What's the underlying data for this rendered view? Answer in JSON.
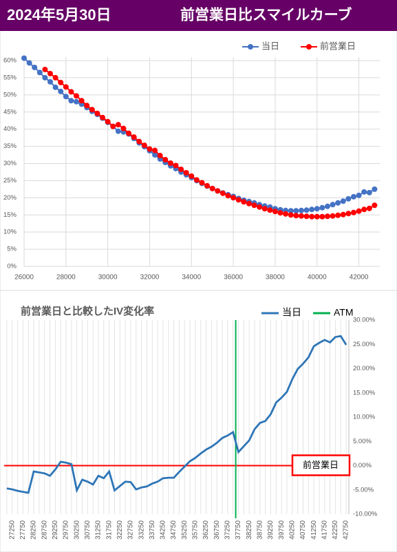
{
  "header": {
    "date": "2024年5月30日",
    "title": "前営業日比スマイルカーブ"
  },
  "chart_data": [
    {
      "type": "line",
      "markers": true,
      "grid": true,
      "legend": "top-right",
      "x": [
        26000,
        26250,
        26500,
        26750,
        27000,
        27250,
        27500,
        27750,
        28000,
        28250,
        28500,
        28750,
        29000,
        29250,
        29500,
        29750,
        30000,
        30250,
        30500,
        30750,
        31000,
        31250,
        31500,
        31750,
        32000,
        32250,
        32500,
        32750,
        33000,
        33250,
        33500,
        33750,
        34000,
        34250,
        34500,
        34750,
        35000,
        35250,
        35500,
        35750,
        36000,
        36250,
        36500,
        36750,
        37000,
        37250,
        37500,
        37750,
        38000,
        38250,
        38500,
        38750,
        39000,
        39250,
        39500,
        39750,
        40000,
        40250,
        40500,
        40750,
        41000,
        41250,
        41500,
        41750,
        42000,
        42250,
        42500,
        42750
      ],
      "series": [
        {
          "name": "当日",
          "color": "#4472c4",
          "values": [
            60.7,
            59.3,
            58.0,
            56.5,
            55.0,
            53.8,
            52.2,
            51.0,
            49.5,
            48.3,
            48.0,
            47.3,
            46.3,
            45.2,
            44.3,
            43.2,
            42.0,
            40.8,
            39.4,
            39.2,
            38.6,
            37.3,
            36.0,
            34.9,
            33.7,
            32.5,
            31.3,
            30.3,
            29.3,
            28.5,
            27.5,
            26.7,
            25.9,
            25.0,
            24.2,
            23.4,
            22.7,
            22.0,
            21.4,
            20.9,
            20.4,
            19.8,
            19.3,
            18.9,
            18.5,
            18.0,
            17.6,
            17.3,
            16.8,
            16.5,
            16.3,
            16.2,
            16.2,
            16.3,
            16.4,
            16.6,
            16.8,
            17.1,
            17.5,
            18.0,
            18.5,
            19.0,
            19.7,
            20.3,
            20.7,
            21.7,
            21.5,
            22.5
          ]
        },
        {
          "name": "前営業日",
          "color": "#ff0000",
          "values": [
            null,
            null,
            null,
            null,
            57.4,
            56.2,
            55.0,
            53.6,
            52.3,
            50.9,
            49.7,
            48.3,
            46.9,
            45.7,
            44.6,
            43.4,
            42.2,
            40.8,
            41.3,
            40.2,
            38.8,
            37.7,
            36.4,
            35.3,
            34.2,
            33.8,
            32.3,
            31.1,
            30.1,
            29.4,
            28.3,
            27.3,
            26.3,
            25.2,
            24.4,
            23.5,
            22.7,
            22.0,
            21.3,
            20.6,
            20.0,
            19.4,
            18.8,
            18.3,
            17.8,
            17.3,
            16.8,
            16.4,
            16.0,
            15.6,
            15.3,
            15.0,
            14.8,
            14.7,
            14.6,
            14.5,
            14.5,
            14.5,
            14.6,
            14.7,
            14.9,
            15.1,
            15.4,
            15.7,
            16.1,
            16.6,
            16.9,
            17.8
          ]
        }
      ],
      "xlim": [
        26000,
        43000
      ],
      "xticks": [
        26000,
        28000,
        30000,
        32000,
        34000,
        36000,
        38000,
        40000,
        42000
      ],
      "ylim": [
        0,
        61
      ],
      "yticks": [
        {
          "value": 0,
          "label": "0%"
        },
        {
          "value": 5,
          "label": "5%"
        },
        {
          "value": 10,
          "label": "10%"
        },
        {
          "value": 15,
          "label": "15%"
        },
        {
          "value": 20,
          "label": "20%"
        },
        {
          "value": 25,
          "label": "25%"
        },
        {
          "value": 30,
          "label": "30%"
        },
        {
          "value": 35,
          "label": "35%"
        },
        {
          "value": 40,
          "label": "40%"
        },
        {
          "value": 45,
          "label": "45%"
        },
        {
          "value": 50,
          "label": "50%"
        },
        {
          "value": 55,
          "label": "55%"
        },
        {
          "value": 60,
          "label": "60%"
        }
      ]
    },
    {
      "type": "line",
      "title": "前営業日と比較したIV変化率",
      "y_axis_side": "right",
      "grid": true,
      "x": [
        27000,
        27250,
        27500,
        27750,
        28000,
        28250,
        28500,
        28750,
        29000,
        29250,
        29500,
        29750,
        30000,
        30250,
        30500,
        30750,
        31000,
        31250,
        31500,
        31750,
        32000,
        32250,
        32500,
        32750,
        33000,
        33250,
        33500,
        33750,
        34000,
        34250,
        34500,
        34750,
        35000,
        35250,
        35500,
        35750,
        36000,
        36250,
        36500,
        36750,
        37000,
        37250,
        37500,
        37750,
        38000,
        38250,
        38500,
        38750,
        39000,
        39250,
        39500,
        39750,
        40000,
        40250,
        40500,
        40750,
        41000,
        41250,
        41500,
        41750,
        42000,
        42250,
        42500,
        42750
      ],
      "series": [
        {
          "name": "当日",
          "color": "#2e75b6",
          "values": [
            -4.7,
            -4.9,
            -5.2,
            -5.4,
            -5.6,
            -1.2,
            -1.4,
            -1.6,
            -2.1,
            -0.8,
            0.8,
            0.6,
            0.3,
            -5.1,
            -2.9,
            -3.3,
            -3.9,
            -2.1,
            -2.6,
            -1.2,
            -5.1,
            -4.2,
            -3.3,
            -3.4,
            -4.9,
            -4.5,
            -4.3,
            -3.7,
            -3.3,
            -2.6,
            -2.5,
            -2.5,
            -1.3,
            -0.2,
            0.9,
            1.6,
            2.5,
            3.3,
            3.9,
            4.7,
            5.7,
            6.2,
            6.9,
            2.8,
            4.0,
            5.2,
            7.5,
            8.8,
            9.2,
            10.6,
            13.0,
            14.0,
            15.2,
            17.8,
            19.9,
            21.0,
            22.3,
            24.6,
            25.3,
            25.9,
            25.4,
            26.5,
            26.7,
            24.9
          ]
        }
      ],
      "atm": {
        "name": "ATM",
        "x": 37625,
        "color": "#00b050"
      },
      "baseline": {
        "label": "前営業日",
        "value": 0,
        "color": "#ff0000"
      },
      "xlim": [
        26875,
        42875
      ],
      "xticks": [
        27250,
        27750,
        28250,
        28750,
        29250,
        29750,
        30250,
        30750,
        31250,
        31750,
        32250,
        32750,
        33250,
        33750,
        34250,
        34750,
        35250,
        35750,
        36250,
        36750,
        37250,
        37750,
        38250,
        38750,
        39250,
        39750,
        40250,
        40750,
        41250,
        41750,
        42250,
        42750
      ],
      "ylim": [
        -10,
        30
      ],
      "yticks": [
        {
          "value": -10,
          "label": "-10.00%"
        },
        {
          "value": -5,
          "label": "-5.00%"
        },
        {
          "value": 0,
          "label": "0.00%"
        },
        {
          "value": 5,
          "label": "5.00%"
        },
        {
          "value": 10,
          "label": "10.00%"
        },
        {
          "value": 15,
          "label": "15.00%"
        },
        {
          "value": 20,
          "label": "20.00%"
        },
        {
          "value": 25,
          "label": "25.00%"
        },
        {
          "value": 30,
          "label": "30.00%"
        }
      ]
    }
  ]
}
